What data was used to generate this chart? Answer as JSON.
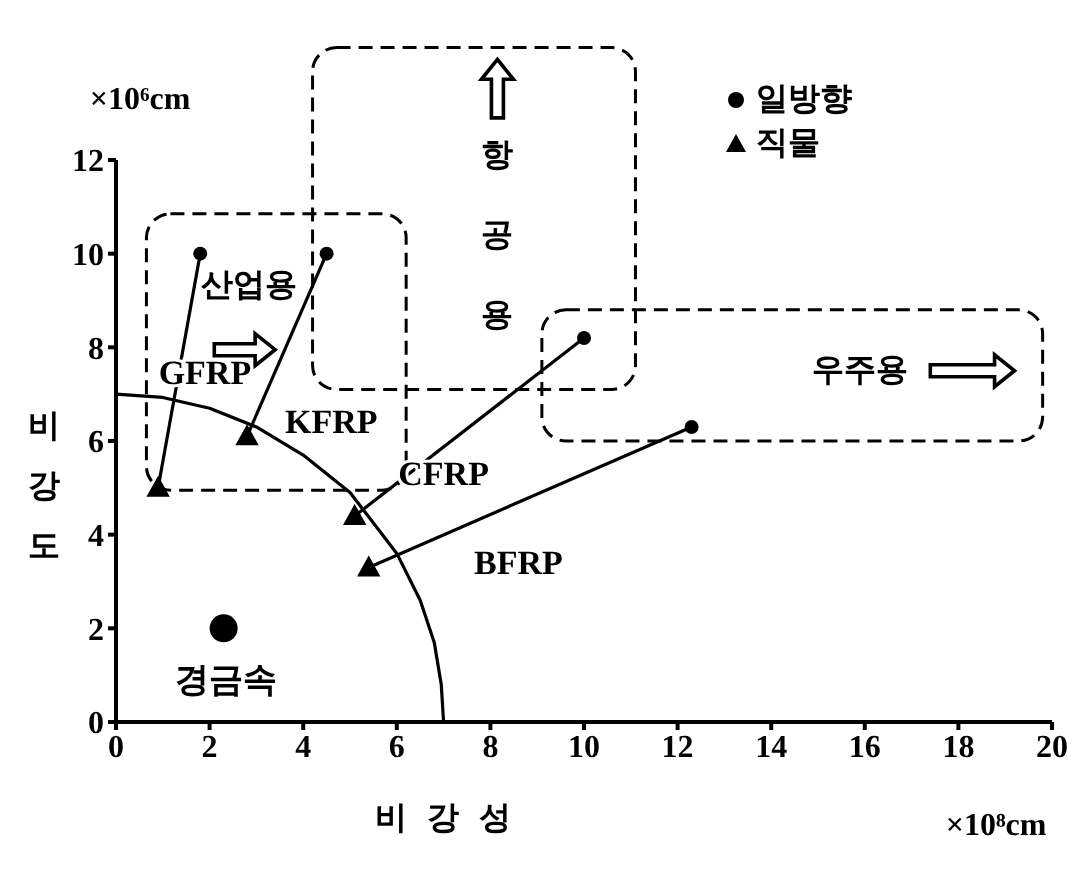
{
  "chart_data": {
    "type": "scatter",
    "xlabel": "비강성",
    "ylabel": "비강도",
    "xlim": [
      0,
      20
    ],
    "xticks": [
      0,
      2,
      4,
      6,
      8,
      10,
      12,
      14,
      16,
      18,
      20
    ],
    "ylim": [
      0,
      12
    ],
    "yticks": [
      0,
      2,
      4,
      6,
      8,
      10,
      12
    ],
    "grid": false,
    "legend": "top right",
    "annotations": [
      "×10⁶cm",
      "×10⁸cm",
      "산업용",
      "항공용",
      "우주용"
    ],
    "series": [
      {
        "name": "일방향",
        "marker": "circle",
        "color": "#000000",
        "x": [
          1.8,
          4.5,
          10,
          12.3
        ],
        "values": [
          10,
          10,
          8.2,
          6.3
        ]
      },
      {
        "name": "직물",
        "marker": "triangle",
        "color": "#000000",
        "x": [
          0.9,
          2.8,
          5.1,
          5.4
        ],
        "values": [
          5,
          6.1,
          4.4,
          3.3
        ]
      },
      {
        "name": "GFRP",
        "type": "line",
        "marker": "none",
        "color": "#000000",
        "x": [
          0.9,
          1.8
        ],
        "values": [
          5,
          10
        ]
      },
      {
        "name": "KFRP",
        "type": "line",
        "marker": "none",
        "color": "#000000",
        "x": [
          2.8,
          4.5
        ],
        "values": [
          6.1,
          10
        ]
      },
      {
        "name": "CFRP",
        "type": "line",
        "marker": "none",
        "color": "#000000",
        "x": [
          5.1,
          10
        ],
        "values": [
          4.4,
          8.2
        ]
      },
      {
        "name": "BFRP",
        "type": "line",
        "marker": "none",
        "color": "#000000",
        "x": [
          5.4,
          12.3
        ],
        "values": [
          3.3,
          6.3
        ]
      },
      {
        "name": "경금속",
        "marker": "circle",
        "color": "#000000",
        "x": [
          2.3
        ],
        "values": [
          2
        ]
      },
      {
        "type": "line",
        "marker": "none",
        "color": "#000000",
        "x": [
          0,
          1,
          2,
          3,
          4,
          5,
          6,
          6.5,
          6.8,
          6.95,
          7
        ],
        "values": [
          7,
          6.93,
          6.7,
          6.3,
          5.7,
          4.9,
          3.6,
          2.6,
          1.7,
          0.8,
          0
        ]
      }
    ]
  }
}
